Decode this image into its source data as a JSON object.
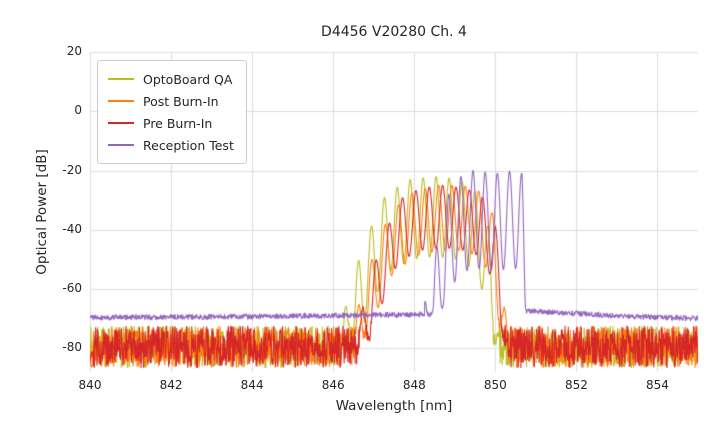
{
  "chart_data": {
    "type": "line",
    "title": "D4456 V20280 Ch. 4",
    "xlabel": "Wavelength [nm]",
    "ylabel": "Optical Power [dB]",
    "xlim": [
      840,
      855
    ],
    "ylim": [
      -88,
      20
    ],
    "xticks": [
      840,
      842,
      844,
      846,
      848,
      850,
      852,
      854
    ],
    "yticks": [
      20,
      0,
      -20,
      -40,
      -60,
      -80
    ],
    "grid": true,
    "grid_color": "#dcdcdc",
    "legend_position": "upper left",
    "series": [
      {
        "name": "OptoBoard QA",
        "color": "#bcbd22",
        "seed": 7,
        "noise_floor_profile": [
          [
            840,
            -79.5
          ],
          [
            855,
            -79.5
          ]
        ],
        "noise_amplitude_db": 7,
        "signal_envelope": [
          [
            846.2,
            -72
          ],
          [
            846.5,
            -55
          ],
          [
            846.9,
            -40
          ],
          [
            847.3,
            -28
          ],
          [
            847.9,
            -23
          ],
          [
            848.5,
            -22
          ],
          [
            849.1,
            -23
          ],
          [
            849.5,
            -27
          ],
          [
            849.85,
            -40
          ],
          [
            850.1,
            -72
          ]
        ],
        "mode_period_nm": 0.32,
        "mode_peak_ref_nm": 847.9,
        "mode_dip_depth_db": 27
      },
      {
        "name": "Post Burn-In",
        "color": "#ff7f0e",
        "seed": 13,
        "noise_floor_profile": [
          [
            840,
            -79.5
          ],
          [
            855,
            -79.5
          ]
        ],
        "noise_amplitude_db": 7,
        "signal_envelope": [
          [
            846.5,
            -72
          ],
          [
            846.9,
            -52
          ],
          [
            847.4,
            -34
          ],
          [
            848.0,
            -27
          ],
          [
            848.6,
            -25
          ],
          [
            849.2,
            -25
          ],
          [
            849.6,
            -27
          ],
          [
            849.95,
            -35
          ],
          [
            850.3,
            -74
          ]
        ],
        "mode_period_nm": 0.33,
        "mode_peak_ref_nm": 848.6,
        "mode_dip_depth_db": 22
      },
      {
        "name": "Pre Burn-In",
        "color": "#d62728",
        "seed": 29,
        "noise_floor_profile": [
          [
            840,
            -79.5
          ],
          [
            855,
            -79.5
          ]
        ],
        "noise_amplitude_db": 7,
        "signal_envelope": [
          [
            846.6,
            -73
          ],
          [
            847.1,
            -48
          ],
          [
            847.6,
            -30
          ],
          [
            848.15,
            -26
          ],
          [
            848.7,
            -25
          ],
          [
            849.25,
            -26
          ],
          [
            849.65,
            -28
          ],
          [
            850.0,
            -38
          ],
          [
            850.3,
            -75
          ]
        ],
        "mode_period_nm": 0.33,
        "mode_peak_ref_nm": 848.7,
        "mode_dip_depth_db": 21
      },
      {
        "name": "Reception Test",
        "color": "#9467bd",
        "seed": 41,
        "noise_floor_profile": [
          [
            840,
            -69.6
          ],
          [
            844,
            -69.3
          ],
          [
            846,
            -69.0
          ],
          [
            848.2,
            -68.6
          ],
          [
            850.8,
            -67.4
          ],
          [
            851.6,
            -68.0
          ],
          [
            853.5,
            -69.3
          ],
          [
            855,
            -69.9
          ]
        ],
        "noise_amplitude_db": 0.9,
        "signal_envelope": [
          [
            848.25,
            -66
          ],
          [
            848.55,
            -46
          ],
          [
            848.85,
            -28
          ],
          [
            849.15,
            -22
          ],
          [
            849.45,
            -20
          ],
          [
            850.0,
            -21
          ],
          [
            850.45,
            -20
          ],
          [
            850.66,
            -21
          ],
          [
            850.74,
            -48
          ],
          [
            850.8,
            -64
          ]
        ],
        "mode_period_nm": 0.3,
        "mode_peak_ref_nm": 849.45,
        "mode_dip_depth_db": 33
      }
    ]
  }
}
